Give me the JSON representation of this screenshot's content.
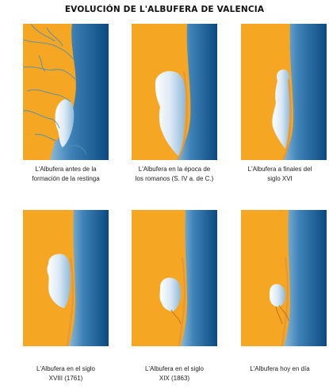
{
  "title": "EVOLUCIÓN DE L'ALBUFERA DE VALENCIA",
  "colors": {
    "land": "#f5a623",
    "sea_light": "#7fb2d6",
    "sea_dark": "#0d4f86",
    "lagoon_light": "#ffffff",
    "lagoon_dark": "#9ec3de",
    "river": "#4f8fb5",
    "sandbar": "#e5983a"
  },
  "panels": [
    {
      "caption_line1": "L'Albufera antes de la",
      "caption_line2": "formación de la restinga"
    },
    {
      "caption_line1": "L'Albufera en la época de",
      "caption_line2": "los romanos (S. IV a. de C.)"
    },
    {
      "caption_line1": "L'Albufera a finales del",
      "caption_line2": "siglo XVI"
    },
    {
      "caption_line1": "L'Albufera en el siglo",
      "caption_line2": "XVIII (1761)"
    },
    {
      "caption_line1": "L'Albufera en el siglo",
      "caption_line2": "XIX (1863)"
    },
    {
      "caption_line1": "L'Albufera hoy en día",
      "caption_line2": ""
    }
  ]
}
